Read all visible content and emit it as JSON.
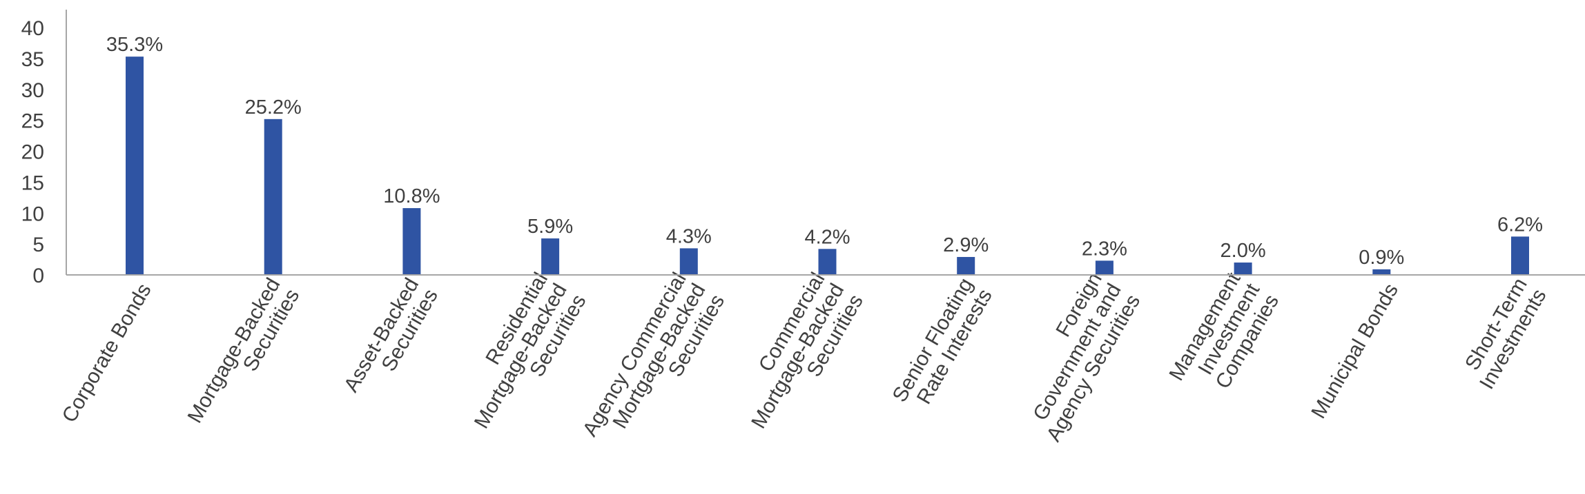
{
  "chart_data": {
    "type": "bar",
    "title": "",
    "xlabel": "",
    "ylabel": "",
    "ylim": [
      0,
      40
    ],
    "yticks": [
      0,
      5,
      10,
      15,
      20,
      25,
      30,
      35,
      40
    ],
    "grid": false,
    "legend": "none",
    "bar_color": "#2F54A3",
    "categories": [
      [
        "Corporate Bonds"
      ],
      [
        "Mortgage-Backed",
        "Securities"
      ],
      [
        "Asset-Backed",
        "Securities"
      ],
      [
        "Residential",
        "Mortgage-Backed",
        "Securities"
      ],
      [
        "Agency Commercial",
        "Mortgage-Backed",
        "Securities"
      ],
      [
        "Commercial",
        "Mortgage-Backed",
        "Securities"
      ],
      [
        "Senior Floating",
        "Rate Interests"
      ],
      [
        "Foreign",
        "Government and",
        "Agency Securities"
      ],
      [
        "Management",
        "Investment",
        "Companies"
      ],
      [
        "Municipal Bonds"
      ],
      [
        "Short-Term",
        "Investments"
      ]
    ],
    "values": [
      35.3,
      25.2,
      10.8,
      5.9,
      4.3,
      4.2,
      2.9,
      2.3,
      2.0,
      0.9,
      6.2
    ],
    "data_labels": [
      "35.3%",
      "25.2%",
      "10.8%",
      "5.9%",
      "4.3%",
      "4.2%",
      "2.9%",
      "2.3%",
      "2.0%",
      "0.9%",
      "6.2%"
    ]
  }
}
